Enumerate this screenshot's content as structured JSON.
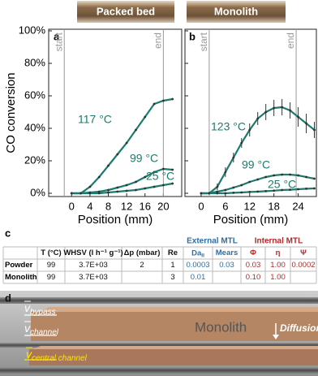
{
  "image_labels": [
    "Packed bed",
    "Monolith"
  ],
  "panel_labels": [
    "a",
    "b",
    "c",
    "d"
  ],
  "chart_data": [
    {
      "type": "line",
      "ylabel": "CO conversion",
      "xlabel": "Position (mm)",
      "xlim": [
        -5,
        24
      ],
      "ylim": [
        -2,
        101
      ],
      "xticks": [
        0,
        4,
        8,
        12,
        16,
        20
      ],
      "yticks": [
        {
          "value": 0,
          "label": "0%"
        },
        {
          "value": 20,
          "label": "20%"
        },
        {
          "value": 40,
          "label": "40%"
        },
        {
          "value": 60,
          "label": "60%"
        },
        {
          "value": 80,
          "label": "80%"
        },
        {
          "value": 100,
          "label": "100%"
        }
      ],
      "ytick_labels": true,
      "vlines": [
        {
          "x": -1.6,
          "label": "start"
        },
        {
          "x": 20,
          "label": "end"
        }
      ],
      "series": [
        {
          "name": "117 °C",
          "color": "#1b7b6e",
          "x": [
            0,
            2,
            4,
            6,
            8,
            10,
            12,
            14,
            16,
            18,
            20,
            22
          ],
          "values": [
            0,
            0,
            4,
            10,
            17,
            24,
            31,
            39,
            47,
            55,
            57,
            58
          ]
        },
        {
          "name": "99 °C",
          "color": "#1b7b6e",
          "x": [
            0,
            2,
            4,
            6,
            8,
            10,
            12,
            14,
            16,
            18,
            20,
            22
          ],
          "values": [
            0,
            0,
            0.5,
            1,
            2,
            3.5,
            5,
            7,
            10,
            13,
            15,
            14.5
          ]
        },
        {
          "name": "25 °C",
          "color": "#1b7b6e",
          "x": [
            0,
            2,
            4,
            6,
            8,
            10,
            12,
            14,
            16,
            18,
            20,
            22
          ],
          "values": [
            0,
            0,
            0,
            0,
            0.5,
            1,
            1.5,
            2,
            3,
            4,
            5,
            6
          ]
        }
      ]
    },
    {
      "type": "line",
      "xlabel": "Position (mm)",
      "xlim": [
        -4,
        28.5
      ],
      "ylim": [
        -2,
        101
      ],
      "xticks": [
        0,
        6,
        12,
        18,
        24
      ],
      "yticks": [
        0,
        20,
        40,
        60,
        80,
        100
      ],
      "ytick_labels": false,
      "vlines": [
        {
          "x": 2,
          "label": "start"
        },
        {
          "x": 23.5,
          "label": "end"
        }
      ],
      "series": [
        {
          "name": "123 °C",
          "color": "#1b7b6e",
          "x": [
            0,
            2,
            4,
            6,
            8,
            10,
            12,
            14,
            16,
            18,
            20,
            22,
            24,
            26,
            28
          ],
          "values": [
            0,
            0,
            4,
            13,
            22,
            31,
            39,
            46,
            50,
            52.5,
            53,
            51,
            47,
            43,
            39
          ],
          "errors": [
            0,
            0,
            2,
            3,
            3,
            3,
            4,
            4,
            5,
            5,
            5,
            5,
            6,
            6,
            5
          ]
        },
        {
          "name": "99 °C",
          "color": "#1b7b6e",
          "x": [
            0,
            2,
            4,
            6,
            8,
            10,
            12,
            14,
            16,
            18,
            20,
            22,
            24,
            26,
            28
          ],
          "values": [
            0,
            0,
            1,
            2,
            3.5,
            5,
            7,
            8.5,
            10,
            11,
            11.5,
            11.5,
            11,
            10,
            9
          ]
        },
        {
          "name": "25 °C",
          "color": "#1b7b6e",
          "x": [
            0,
            2,
            4,
            6,
            8,
            10,
            12,
            14,
            16,
            18,
            20,
            22,
            24,
            26,
            28
          ],
          "values": [
            0,
            0,
            0,
            0,
            0.3,
            0.5,
            0.8,
            1,
            1.3,
            1.6,
            2,
            2.2,
            2.5,
            2.8,
            3
          ]
        }
      ]
    }
  ],
  "table": {
    "group_headers": [
      "External MTL",
      "Internal MTL"
    ],
    "header": [
      "T (°C)",
      "WHSV (l h⁻¹ g⁻¹)",
      "Δp (mbar)",
      "Re",
      {
        "text": "Da",
        "sub": "II"
      },
      "Mears",
      "Φ",
      "η",
      "Ψ"
    ],
    "rows": [
      {
        "label": "Powder",
        "cells": [
          "99",
          "3.7E+03",
          "2",
          "1",
          "0.0003",
          "0.03",
          "0.03",
          "1.00",
          "0.0002"
        ]
      },
      {
        "label": "Monolith",
        "cells": [
          "99",
          "3.7E+03",
          null,
          "3",
          "0.01",
          null,
          "0.10",
          "1.00",
          null
        ]
      }
    ]
  },
  "illustration": {
    "title": "Monolith",
    "diffusion": "Diffusion",
    "annotations": [
      {
        "symbol": "v",
        "sub": "bypass"
      },
      {
        "symbol": "v",
        "sub": "channel"
      },
      {
        "symbol": "v",
        "sub": "central channel"
      }
    ]
  }
}
